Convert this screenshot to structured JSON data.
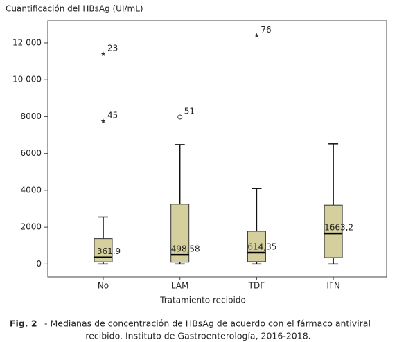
{
  "chart_data": {
    "type": "box",
    "y_label": "Cuantificación del HBsAg (UI/mL)",
    "x_label": "Tratamiento recibido",
    "categories": [
      "No",
      "LAM",
      "TDF",
      "IFN"
    ],
    "whisker_low": [
      0,
      0,
      0,
      0
    ],
    "q1": [
      120,
      100,
      130,
      350
    ],
    "median": [
      361.9,
      498.58,
      614.35,
      1663.2
    ],
    "median_labels": [
      "361,9",
      "498,58",
      "614,35",
      "1663,2"
    ],
    "q3": [
      1380,
      3250,
      1780,
      3200
    ],
    "whisker_high": [
      2550,
      6480,
      4100,
      6520
    ],
    "outliers": [
      {
        "category": 0,
        "value": 11400,
        "case": "23",
        "marker": "star"
      },
      {
        "category": 0,
        "value": 7750,
        "case": "45",
        "marker": "star"
      },
      {
        "category": 1,
        "value": 7980,
        "case": "51",
        "marker": "circle"
      },
      {
        "category": 2,
        "value": 12400,
        "case": "76",
        "marker": "star"
      }
    ],
    "box_color": "#d4cf9c",
    "ylim": [
      -700,
      13200
    ],
    "yticks": [
      0,
      2000,
      4000,
      6000,
      8000,
      {
        "value": 10000,
        "label": "10 000"
      },
      {
        "value": 12000,
        "label": "12 000"
      }
    ]
  },
  "caption": {
    "label": "Fig. 2",
    "lines": [
      "- Medianas de concentración de HBsAg de acuerdo con el fármaco antiviral",
      "recibido. Instituto de Gastroenterología, 2016-2018."
    ]
  }
}
